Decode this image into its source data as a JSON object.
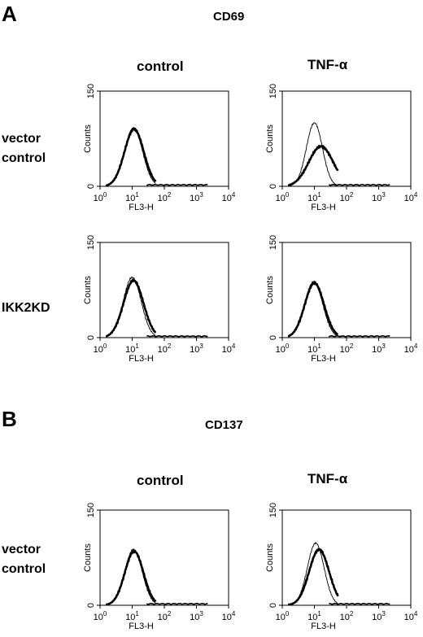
{
  "panel_a": {
    "letter": "A",
    "marker": "CD69",
    "col_labels": [
      "control",
      "TNF-α"
    ],
    "row_labels": [
      [
        "vector",
        "control"
      ],
      [
        "IKK2KD"
      ]
    ]
  },
  "panel_b": {
    "letter": "B",
    "marker": "CD137",
    "col_labels": [
      "control",
      "TNF-α"
    ],
    "row_labels": [
      [
        "vector",
        "control"
      ]
    ]
  },
  "chart_data": [
    {
      "type": "line",
      "panel": "A",
      "marker": "CD69",
      "row": "vector control",
      "column": "control",
      "xlabel": "FL3-H",
      "ylabel": "Counts",
      "x_scale": "log",
      "xlim": [
        1,
        10000
      ],
      "ylim": [
        0,
        150
      ],
      "x_ticks": [
        "10^0",
        "10^1",
        "10^2",
        "10^3",
        "10^4"
      ],
      "y_ticks": [
        "0",
        "150"
      ],
      "series": [
        {
          "style": "thin",
          "peak_x": 11,
          "peak_y": 92,
          "width_decades": 0.28
        },
        {
          "style": "thick",
          "peak_x": 11.5,
          "peak_y": 90,
          "width_decades": 0.3
        }
      ]
    },
    {
      "type": "line",
      "panel": "A",
      "marker": "CD69",
      "row": "vector control",
      "column": "TNF-α",
      "xlabel": "FL3-H",
      "ylabel": "Counts",
      "x_scale": "log",
      "xlim": [
        1,
        10000
      ],
      "ylim": [
        0,
        150
      ],
      "x_ticks": [
        "10^0",
        "10^1",
        "10^2",
        "10^3",
        "10^4"
      ],
      "y_ticks": [
        "0",
        "150"
      ],
      "series": [
        {
          "style": "thin",
          "peak_x": 10,
          "peak_y": 100,
          "width_decades": 0.25
        },
        {
          "style": "thick",
          "peak_x": 16,
          "peak_y": 63,
          "width_decades": 0.38
        }
      ]
    },
    {
      "type": "line",
      "panel": "A",
      "marker": "CD69",
      "row": "IKK2KD",
      "column": "control",
      "xlabel": "FL3-H",
      "ylabel": "Counts",
      "x_scale": "log",
      "xlim": [
        1,
        10000
      ],
      "ylim": [
        0,
        150
      ],
      "x_ticks": [
        "10^0",
        "10^1",
        "10^2",
        "10^3",
        "10^4"
      ],
      "y_ticks": [
        "0",
        "150"
      ],
      "series": [
        {
          "style": "thin",
          "peak_x": 10,
          "peak_y": 95,
          "width_decades": 0.28
        },
        {
          "style": "thick",
          "peak_x": 11,
          "peak_y": 90,
          "width_decades": 0.31
        }
      ]
    },
    {
      "type": "line",
      "panel": "A",
      "marker": "CD69",
      "row": "IKK2KD",
      "column": "TNF-α",
      "xlabel": "FL3-H",
      "ylabel": "Counts",
      "x_scale": "log",
      "xlim": [
        1,
        10000
      ],
      "ylim": [
        0,
        150
      ],
      "x_ticks": [
        "10^0",
        "10^1",
        "10^2",
        "10^3",
        "10^4"
      ],
      "y_ticks": [
        "0",
        "150"
      ],
      "series": [
        {
          "style": "thin",
          "peak_x": 9.5,
          "peak_y": 88,
          "width_decades": 0.28
        },
        {
          "style": "thick",
          "peak_x": 10,
          "peak_y": 86,
          "width_decades": 0.3
        }
      ]
    },
    {
      "type": "line",
      "panel": "B",
      "marker": "CD137",
      "row": "vector control",
      "column": "control",
      "xlabel": "FL3-H",
      "ylabel": "Counts",
      "x_scale": "log",
      "xlim": [
        1,
        10000
      ],
      "ylim": [
        0,
        150
      ],
      "x_ticks": [
        "10^0",
        "10^1",
        "10^2",
        "10^3",
        "10^4"
      ],
      "y_ticks": [
        "0",
        "150"
      ],
      "series": [
        {
          "style": "thin",
          "peak_x": 11,
          "peak_y": 88,
          "width_decades": 0.27
        },
        {
          "style": "thick",
          "peak_x": 11.5,
          "peak_y": 85,
          "width_decades": 0.29
        }
      ]
    },
    {
      "type": "line",
      "panel": "B",
      "marker": "CD137",
      "row": "vector control",
      "column": "TNF-α",
      "xlabel": "FL3-H",
      "ylabel": "Counts",
      "x_scale": "log",
      "xlim": [
        1,
        10000
      ],
      "ylim": [
        0,
        150
      ],
      "x_ticks": [
        "10^0",
        "10^1",
        "10^2",
        "10^3",
        "10^4"
      ],
      "y_ticks": [
        "0",
        "150"
      ],
      "series": [
        {
          "style": "thin",
          "peak_x": 11,
          "peak_y": 98,
          "width_decades": 0.26
        },
        {
          "style": "thick",
          "peak_x": 14,
          "peak_y": 88,
          "width_decades": 0.31
        }
      ]
    }
  ]
}
